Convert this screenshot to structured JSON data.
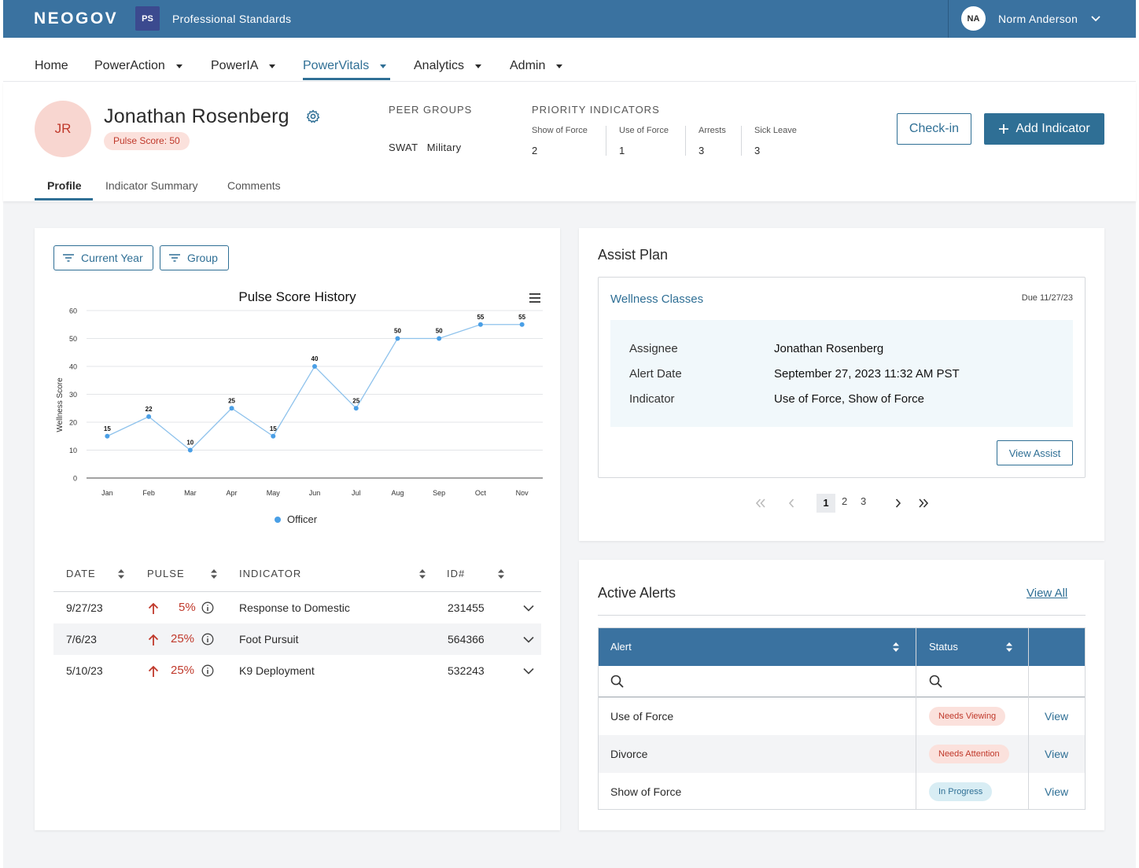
{
  "topbar": {
    "logo": "NEOGOV",
    "app_badge": "PS",
    "app_name": "Professional Standards",
    "user_initials": "NA",
    "user_name": "Norm Anderson"
  },
  "nav": [
    {
      "label": "Home",
      "dropdown": false
    },
    {
      "label": "PowerAction",
      "dropdown": true
    },
    {
      "label": "PowerIA",
      "dropdown": true
    },
    {
      "label": "PowerVitals",
      "dropdown": true,
      "active": true
    },
    {
      "label": "Analytics",
      "dropdown": true
    },
    {
      "label": "Admin",
      "dropdown": true
    }
  ],
  "profile": {
    "initials": "JR",
    "name": "Jonathan Rosenberg",
    "pulse_badge": "Pulse Score: 50",
    "peer_groups_label": "PEER GROUPS",
    "peer_groups_value": "SWAT   Military",
    "priority_label": "PRIORITY INDICATORS",
    "indicators": [
      {
        "label": "Show of Force",
        "value": "2"
      },
      {
        "label": "Use of Force",
        "value": "1"
      },
      {
        "label": "Arrests",
        "value": "3"
      },
      {
        "label": "Sick Leave",
        "value": "3"
      }
    ],
    "checkin_label": "Check-in",
    "add_indicator_label": "Add Indicator",
    "tabs": [
      "Profile",
      "Indicator Summary",
      "Comments"
    ]
  },
  "filters": {
    "year": "Current Year",
    "group": "Group"
  },
  "chart_data": {
    "type": "line",
    "title": "Pulse Score History",
    "ylabel": "Wellness Score",
    "xlabel": "",
    "categories": [
      "Jan",
      "Feb",
      "Mar",
      "Apr",
      "May",
      "Jun",
      "Jul",
      "Aug",
      "Sep",
      "Oct",
      "Nov"
    ],
    "series": [
      {
        "name": "Officer",
        "values": [
          15,
          22,
          10,
          25,
          15,
          40,
          25,
          50,
          50,
          55,
          55
        ]
      }
    ],
    "yticks": [
      0,
      10,
      20,
      30,
      40,
      50,
      60
    ],
    "ylim": [
      0,
      60
    ],
    "grid": true,
    "legend": "bottom-center",
    "colors": {
      "line": "#8ec2ec",
      "point": "#4a9fe6"
    }
  },
  "table": {
    "headers": [
      "DATE",
      "PULSE",
      "INDICATOR",
      "ID#"
    ],
    "rows": [
      {
        "date": "9/27/23",
        "pulse": "5%",
        "indicator": "Response to Domestic",
        "id": "231455"
      },
      {
        "date": "7/6/23",
        "pulse": "25%",
        "indicator": "Foot Pursuit",
        "id": "564366"
      },
      {
        "date": "5/10/23",
        "pulse": "25%",
        "indicator": "K9 Deployment",
        "id": "532243"
      }
    ]
  },
  "assist_plan": {
    "title": "Assist Plan",
    "plan_name": "Wellness Classes",
    "due": "Due 11/27/23",
    "fields": [
      {
        "label": "Assignee",
        "value": "Jonathan Rosenberg"
      },
      {
        "label": "Alert Date",
        "value": "September 27, 2023 11:32 AM PST"
      },
      {
        "label": "Indicator",
        "value": "Use of Force, Show of Force"
      }
    ],
    "view_label": "View Assist",
    "pages": [
      "1",
      "2",
      "3"
    ]
  },
  "active_alerts": {
    "title": "Active Alerts",
    "view_all": "View All",
    "headers": [
      "Alert",
      "Status"
    ],
    "rows": [
      {
        "alert": "Use of Force",
        "status": "Needs Viewing",
        "action": "View"
      },
      {
        "alert": "Divorce",
        "status": "Needs Attention",
        "action": "View"
      },
      {
        "alert": "Show of Force",
        "status": "In Progress",
        "action": "View"
      }
    ]
  },
  "colors": {
    "brand": "#3a72a0",
    "accent": "#2f6f95",
    "danger": "#c0392b"
  }
}
